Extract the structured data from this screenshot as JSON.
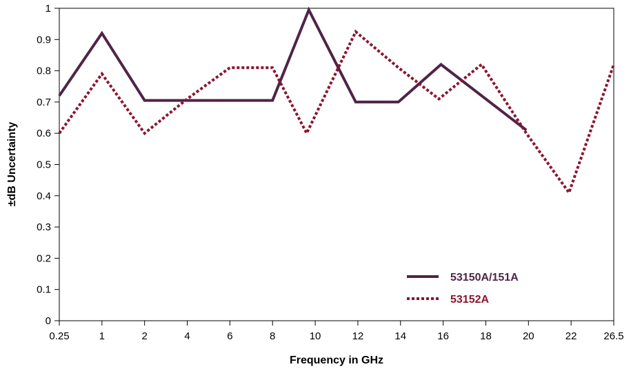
{
  "chart_data": {
    "type": "line",
    "xlabel": "Frequency in GHz",
    "ylabel": "±dB Uncertainty",
    "categories": [
      "0.25",
      "1",
      "2",
      "4",
      "6",
      "8",
      "10",
      "12",
      "14",
      "16",
      "18",
      "20",
      "22",
      "26.5"
    ],
    "ylim": [
      0,
      1
    ],
    "yticks": [
      "0",
      "0.1",
      "0.2",
      "0.3",
      "0.4",
      "0.5",
      "0.6",
      "0.7",
      "0.8",
      "0.9",
      "1"
    ],
    "grid": false,
    "legend_position": "bottom-right",
    "series": [
      {
        "name": "53150A/151A",
        "color": "#4f2447",
        "style": "solid",
        "points": [
          [
            0,
            0.72
          ],
          [
            1,
            0.92
          ],
          [
            2,
            0.705
          ],
          [
            3,
            0.705
          ],
          [
            4,
            0.705
          ],
          [
            5,
            0.705
          ],
          [
            5.85,
            0.995
          ],
          [
            6.95,
            0.7
          ],
          [
            7.95,
            0.7
          ],
          [
            8.95,
            0.82
          ],
          [
            10.95,
            0.61
          ]
        ]
      },
      {
        "name": "53152A",
        "color": "#8b1530",
        "style": "dotted",
        "points": [
          [
            0,
            0.6
          ],
          [
            1,
            0.79
          ],
          [
            2,
            0.6
          ],
          [
            3,
            0.71
          ],
          [
            4,
            0.81
          ],
          [
            5,
            0.81
          ],
          [
            5.8,
            0.6
          ],
          [
            6.95,
            0.925
          ],
          [
            7.95,
            0.81
          ],
          [
            8.9,
            0.71
          ],
          [
            9.9,
            0.82
          ],
          [
            10.95,
            0.6
          ],
          [
            11.95,
            0.41
          ],
          [
            13,
            0.82
          ]
        ]
      }
    ]
  }
}
